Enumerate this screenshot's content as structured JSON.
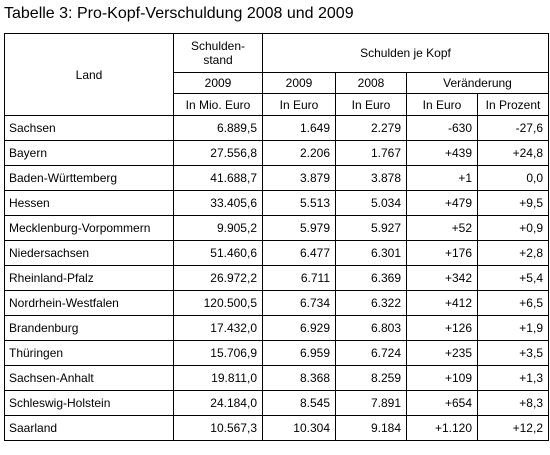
{
  "title": "Tabelle 3: Pro-Kopf-Verschuldung 2008 und 2009",
  "header": {
    "land": "Land",
    "schuldenstand": "Schulden-stand",
    "schulden_je_kopf": "Schulden je Kopf",
    "year_2009_stand": "2009",
    "year_2009": "2009",
    "year_2008": "2008",
    "veraenderung": "Veränderung",
    "unit_mio": "In Mio. Euro",
    "unit_euro_2009": "In Euro",
    "unit_euro_2008": "In Euro",
    "unit_euro_change": "In Euro",
    "unit_prozent": "In Prozent"
  },
  "rows": [
    {
      "land": "Sachsen",
      "stand": "6.889,5",
      "k2009": "1.649",
      "k2008": "2.279",
      "euro": "-630",
      "pct": "-27,6"
    },
    {
      "land": "Bayern",
      "stand": "27.556,8",
      "k2009": "2.206",
      "k2008": "1.767",
      "euro": "+439",
      "pct": "+24,8"
    },
    {
      "land": "Baden-Württemberg",
      "stand": "41.688,7",
      "k2009": "3.879",
      "k2008": "3.878",
      "euro": "+1",
      "pct": "0,0"
    },
    {
      "land": "Hessen",
      "stand": "33.405,6",
      "k2009": "5.513",
      "k2008": "5.034",
      "euro": "+479",
      "pct": "+9,5"
    },
    {
      "land": "Mecklenburg-Vorpommern",
      "stand": "9.905,2",
      "k2009": "5.979",
      "k2008": "5.927",
      "euro": "+52",
      "pct": "+0,9"
    },
    {
      "land": "Niedersachsen",
      "stand": "51.460,6",
      "k2009": "6.477",
      "k2008": "6.301",
      "euro": "+176",
      "pct": "+2,8"
    },
    {
      "land": "Rheinland-Pfalz",
      "stand": "26.972,2",
      "k2009": "6.711",
      "k2008": "6.369",
      "euro": "+342",
      "pct": "+5,4"
    },
    {
      "land": "Nordrhein-Westfalen",
      "stand": "120.500,5",
      "k2009": "6.734",
      "k2008": "6.322",
      "euro": "+412",
      "pct": "+6,5"
    },
    {
      "land": "Brandenburg",
      "stand": "17.432,0",
      "k2009": "6.929",
      "k2008": "6.803",
      "euro": "+126",
      "pct": "+1,9"
    },
    {
      "land": "Thüringen",
      "stand": "15.706,9",
      "k2009": "6.959",
      "k2008": "6.724",
      "euro": "+235",
      "pct": "+3,5"
    },
    {
      "land": "Sachsen-Anhalt",
      "stand": "19.811,0",
      "k2009": "8.368",
      "k2008": "8.259",
      "euro": "+109",
      "pct": "+1,3"
    },
    {
      "land": "Schleswig-Holstein",
      "stand": "24.184,0",
      "k2009": "8.545",
      "k2008": "7.891",
      "euro": "+654",
      "pct": "+8,3"
    },
    {
      "land": "Saarland",
      "stand": "10.567,3",
      "k2009": "10.304",
      "k2008": "9.184",
      "euro": "+1.120",
      "pct": "+12,2"
    }
  ]
}
